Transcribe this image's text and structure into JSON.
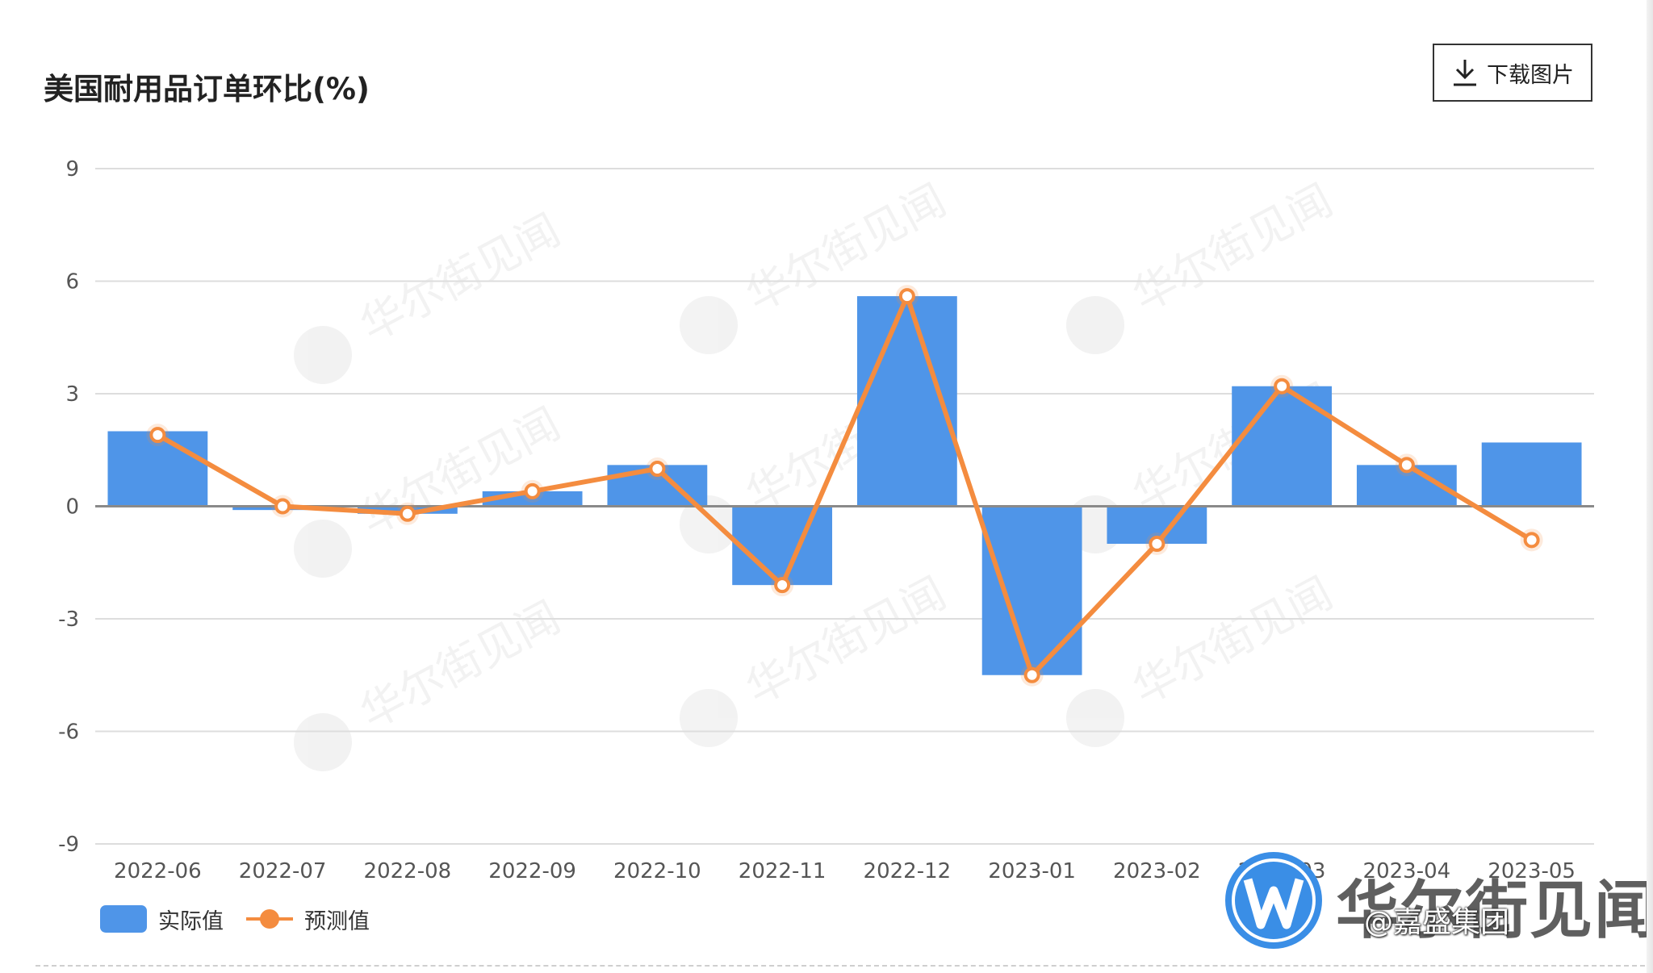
{
  "chart_data": {
    "type": "bar+line",
    "title": "美国耐用品订单环比(%)",
    "categories": [
      "2022-06",
      "2022-07",
      "2022-08",
      "2022-09",
      "2022-10",
      "2022-11",
      "2022-12",
      "2023-01",
      "2023-02",
      "2023-03",
      "2023-04",
      "2023-05"
    ],
    "series": [
      {
        "name": "实际值",
        "type": "bar",
        "color": "#4f95e8",
        "values": [
          2.0,
          -0.1,
          -0.2,
          0.4,
          1.1,
          -2.1,
          5.6,
          -4.5,
          -1.0,
          3.2,
          1.1,
          1.7
        ]
      },
      {
        "name": "预测值",
        "type": "line",
        "color": "#f48c3f",
        "values": [
          1.9,
          0.0,
          -0.2,
          0.4,
          1.0,
          -2.1,
          5.6,
          -4.5,
          -1.0,
          3.2,
          1.1,
          -0.9
        ]
      }
    ],
    "ylim": [
      -9,
      9
    ],
    "yticks": [
      9,
      6,
      3,
      0,
      -3,
      -6,
      -9
    ],
    "grid": true,
    "legend_position": "bottom-left"
  },
  "toolbar": {
    "download_label": "下载图片"
  },
  "watermark": {
    "text": "华尔街见闻",
    "icon": "wallstreetcn-logo-icon"
  },
  "overlay": {
    "weibo_handle": "@嘉盛集团"
  }
}
